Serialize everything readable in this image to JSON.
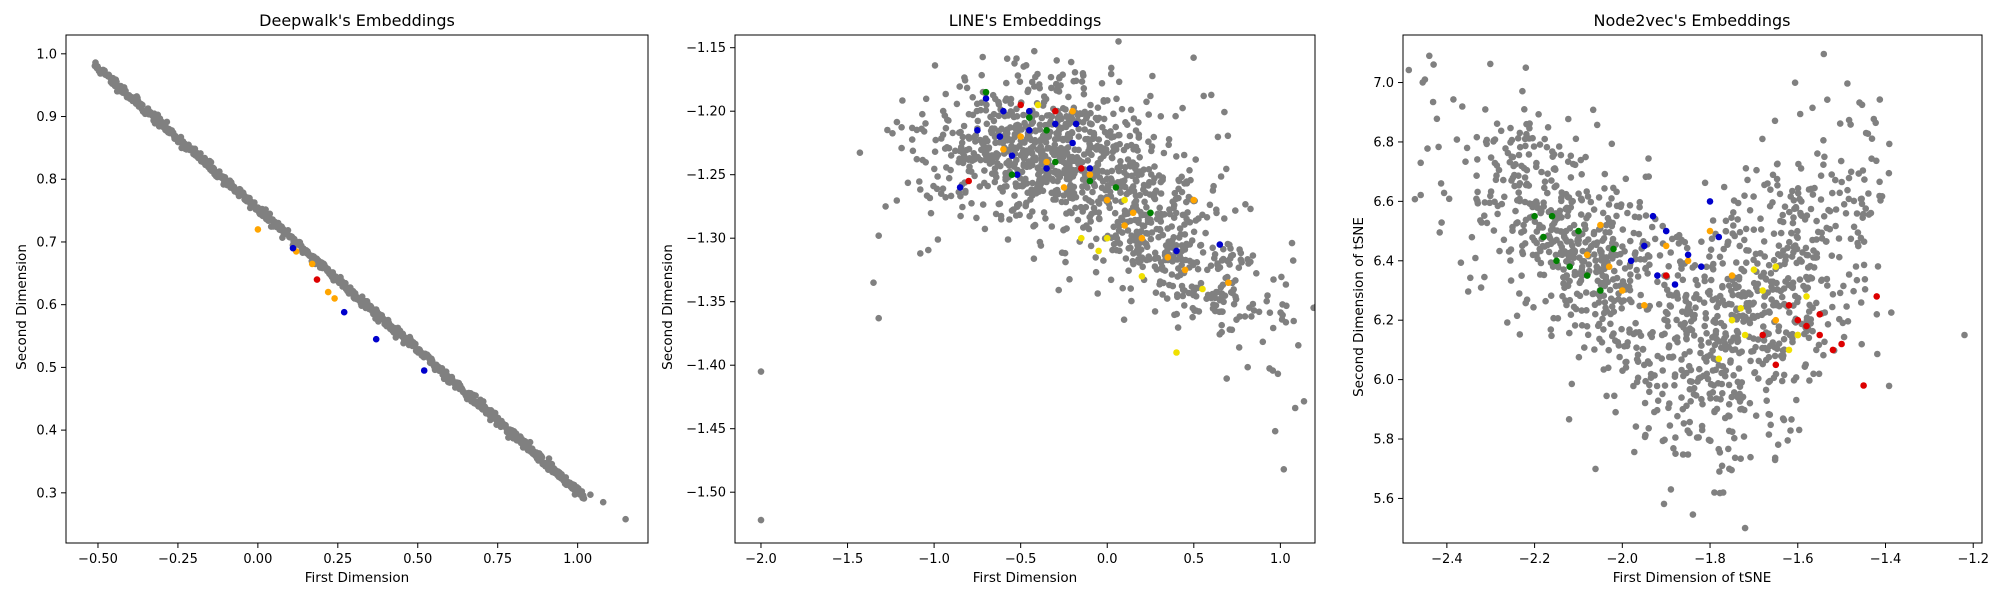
{
  "figure": {
    "background": "#ffffff"
  },
  "colors": {
    "gray": "#808080",
    "blue": "#0000cc",
    "orange": "#ffa500",
    "red": "#dd0000",
    "green": "#008000",
    "yellow": "#f0e000",
    "axis": "#000000"
  },
  "chart_data": [
    {
      "type": "scatter",
      "title": "Deepwalk's Embeddings",
      "xlabel": "First Dimension",
      "ylabel": "Second Dimension",
      "xlim": [
        -0.6,
        1.22
      ],
      "ylim": [
        0.22,
        1.03
      ],
      "xticks": [
        -0.5,
        -0.25,
        0.0,
        0.25,
        0.5,
        0.75,
        1.0
      ],
      "xtick_labels": [
        "−0.50",
        "−0.25",
        "0.00",
        "0.25",
        "0.50",
        "0.75",
        "1.00"
      ],
      "yticks": [
        0.3,
        0.4,
        0.5,
        0.6,
        0.7,
        0.8,
        0.9,
        1.0
      ],
      "ytick_labels": [
        "0.3",
        "0.4",
        "0.5",
        "0.6",
        "0.7",
        "0.8",
        "0.9",
        "1.0"
      ],
      "seed": 11,
      "generator": {
        "model": "line",
        "slope": -0.4497,
        "intercept": 0.7525,
        "x_start": -0.51,
        "x_end": 1.02,
        "noise": 0.004,
        "outliers": [
          [
            1.15,
            0.258
          ],
          [
            1.08,
            0.285
          ],
          [
            1.04,
            0.297
          ]
        ]
      },
      "highlights": {
        "orange": [
          [
            0.0,
            0.72
          ],
          [
            0.12,
            0.685
          ],
          [
            0.17,
            0.665
          ],
          [
            0.22,
            0.62
          ],
          [
            0.24,
            0.61
          ]
        ],
        "blue": [
          [
            0.11,
            0.69
          ],
          [
            0.27,
            0.588
          ],
          [
            0.37,
            0.545
          ],
          [
            0.52,
            0.495
          ]
        ],
        "red": [
          [
            0.185,
            0.64
          ]
        ]
      }
    },
    {
      "type": "scatter",
      "title": "LINE's Embeddings",
      "xlabel": "First Dimension",
      "ylabel": "Second Dimension",
      "xlim": [
        -2.15,
        1.2
      ],
      "ylim": [
        -1.54,
        -1.14
      ],
      "xticks": [
        -2.0,
        -1.5,
        -1.0,
        -0.5,
        0.0,
        0.5,
        1.0
      ],
      "xtick_labels": [
        "−2.0",
        "−1.5",
        "−1.0",
        "−0.5",
        "0.0",
        "0.5",
        "1.0"
      ],
      "yticks": [
        -1.5,
        -1.45,
        -1.4,
        -1.35,
        -1.3,
        -1.25,
        -1.2,
        -1.15
      ],
      "ytick_labels": [
        "−1.50",
        "−1.45",
        "−1.40",
        "−1.35",
        "−1.30",
        "−1.25",
        "−1.20",
        "−1.15"
      ],
      "seed": 23,
      "generator": {
        "model": "cloud",
        "count": 1200,
        "clusters": [
          {
            "weight": 0.55,
            "cx": -0.4,
            "cy": -1.23,
            "sx": 0.35,
            "sy": 0.028,
            "slope": 0.0
          },
          {
            "weight": 0.45,
            "cx": 0.3,
            "cy": -1.3,
            "sx": 0.35,
            "sy": 0.03,
            "slope": -0.08
          }
        ],
        "outliers": [
          [
            -2.0,
            -1.405
          ],
          [
            -2.0,
            -1.522
          ],
          [
            -1.35,
            -1.335
          ],
          [
            -1.32,
            -1.363
          ],
          [
            -1.32,
            -1.298
          ],
          [
            -1.28,
            -1.275
          ],
          [
            1.02,
            -1.482
          ],
          [
            0.97,
            -1.452
          ],
          [
            -1.08,
            -1.312
          ]
        ]
      },
      "highlights": {
        "blue": [
          [
            -0.75,
            -1.215
          ],
          [
            -0.7,
            -1.19
          ],
          [
            -0.6,
            -1.2
          ],
          [
            -0.55,
            -1.235
          ],
          [
            -0.45,
            -1.215
          ],
          [
            -0.35,
            -1.245
          ],
          [
            -0.3,
            -1.21
          ],
          [
            -0.2,
            -1.225
          ],
          [
            -0.1,
            -1.245
          ],
          [
            -0.85,
            -1.26
          ],
          [
            -0.52,
            -1.25
          ],
          [
            -0.18,
            -1.21
          ],
          [
            -0.62,
            -1.22
          ],
          [
            0.4,
            -1.31
          ],
          [
            0.65,
            -1.305
          ],
          [
            -0.45,
            -1.2
          ]
        ],
        "orange": [
          [
            -0.6,
            -1.23
          ],
          [
            -0.35,
            -1.24
          ],
          [
            -0.2,
            -1.2
          ],
          [
            -0.1,
            -1.25
          ],
          [
            0.0,
            -1.27
          ],
          [
            0.1,
            -1.29
          ],
          [
            0.2,
            -1.3
          ],
          [
            0.35,
            -1.315
          ],
          [
            0.5,
            -1.27
          ],
          [
            0.7,
            -1.335
          ],
          [
            -0.5,
            -1.22
          ],
          [
            0.15,
            -1.28
          ],
          [
            0.45,
            -1.325
          ],
          [
            -0.25,
            -1.26
          ]
        ],
        "green": [
          [
            -0.7,
            -1.185
          ],
          [
            -0.45,
            -1.205
          ],
          [
            -0.3,
            -1.24
          ],
          [
            -0.1,
            -1.255
          ],
          [
            0.05,
            -1.26
          ],
          [
            -0.55,
            -1.25
          ],
          [
            0.25,
            -1.28
          ],
          [
            -0.35,
            -1.215
          ]
        ],
        "red": [
          [
            -0.5,
            -1.195
          ],
          [
            -0.3,
            -1.2
          ],
          [
            -0.15,
            -1.245
          ],
          [
            -0.8,
            -1.255
          ]
        ],
        "yellow": [
          [
            -0.4,
            -1.195
          ],
          [
            -0.15,
            -1.3
          ],
          [
            0.0,
            -1.3
          ],
          [
            0.2,
            -1.33
          ],
          [
            0.4,
            -1.39
          ],
          [
            -0.05,
            -1.31
          ],
          [
            0.1,
            -1.27
          ],
          [
            0.55,
            -1.34
          ]
        ]
      }
    },
    {
      "type": "scatter",
      "title": "Node2vec's Embeddings",
      "xlabel": "First Dimension of tSNE",
      "ylabel": "Second Dimension of tSNE",
      "xlim": [
        -2.5,
        -1.18
      ],
      "ylim": [
        5.45,
        7.16
      ],
      "xticks": [
        -2.4,
        -2.2,
        -2.0,
        -1.8,
        -1.6,
        -1.4,
        -1.2
      ],
      "xtick_labels": [
        "−2.4",
        "−2.2",
        "−2.0",
        "−1.8",
        "−1.6",
        "−1.4",
        "−1.2"
      ],
      "yticks": [
        5.6,
        5.8,
        6.0,
        6.2,
        6.4,
        6.6,
        6.8,
        7.0
      ],
      "ytick_labels": [
        "5.6",
        "5.8",
        "6.0",
        "6.2",
        "6.4",
        "6.6",
        "6.8",
        "7.0"
      ],
      "seed": 37,
      "generator": {
        "model": "cloud",
        "count": 1300,
        "clusters": [
          {
            "weight": 0.5,
            "cx": -2.1,
            "cy": 6.45,
            "sx": 0.14,
            "sy": 0.17,
            "slope": -1.0
          },
          {
            "weight": 0.5,
            "cx": -1.68,
            "cy": 6.25,
            "sx": 0.13,
            "sy": 0.22,
            "slope": 1.1
          }
        ],
        "outliers": [
          [
            -2.44,
            7.09
          ],
          [
            -2.45,
            7.01
          ],
          [
            -2.22,
            7.05
          ],
          [
            -1.22,
            6.15
          ],
          [
            -1.72,
            5.5
          ],
          [
            -1.79,
            5.62
          ],
          [
            -1.77,
            5.62
          ]
        ]
      },
      "highlights": {
        "green": [
          [
            -2.2,
            6.55
          ],
          [
            -2.18,
            6.48
          ],
          [
            -2.15,
            6.4
          ],
          [
            -2.12,
            6.38
          ],
          [
            -2.1,
            6.5
          ],
          [
            -2.05,
            6.3
          ],
          [
            -2.02,
            6.44
          ],
          [
            -2.16,
            6.55
          ],
          [
            -2.08,
            6.35
          ]
        ],
        "orange": [
          [
            -2.08,
            6.42
          ],
          [
            -2.05,
            6.52
          ],
          [
            -2.0,
            6.3
          ],
          [
            -1.95,
            6.25
          ],
          [
            -1.9,
            6.45
          ],
          [
            -1.85,
            6.4
          ],
          [
            -1.8,
            6.5
          ],
          [
            -1.75,
            6.35
          ],
          [
            -1.65,
            6.2
          ],
          [
            -1.6,
            6.15
          ],
          [
            -2.03,
            6.38
          ]
        ],
        "blue": [
          [
            -1.98,
            6.4
          ],
          [
            -1.95,
            6.45
          ],
          [
            -1.92,
            6.35
          ],
          [
            -1.9,
            6.5
          ],
          [
            -1.85,
            6.42
          ],
          [
            -1.82,
            6.38
          ],
          [
            -1.8,
            6.6
          ],
          [
            -1.78,
            6.48
          ],
          [
            -1.88,
            6.32
          ],
          [
            -1.93,
            6.55
          ]
        ],
        "red": [
          [
            -1.9,
            6.35
          ],
          [
            -1.62,
            6.25
          ],
          [
            -1.6,
            6.2
          ],
          [
            -1.58,
            6.18
          ],
          [
            -1.55,
            6.15
          ],
          [
            -1.52,
            6.1
          ],
          [
            -1.5,
            6.12
          ],
          [
            -1.45,
            5.98
          ],
          [
            -1.42,
            6.28
          ],
          [
            -1.65,
            6.05
          ],
          [
            -1.68,
            6.15
          ],
          [
            -1.55,
            6.22
          ]
        ],
        "yellow": [
          [
            -1.75,
            6.2
          ],
          [
            -1.72,
            6.15
          ],
          [
            -1.7,
            6.37
          ],
          [
            -1.68,
            6.3
          ],
          [
            -1.65,
            6.38
          ],
          [
            -1.62,
            6.1
          ],
          [
            -1.6,
            6.15
          ],
          [
            -1.58,
            6.28
          ],
          [
            -1.78,
            6.07
          ],
          [
            -1.73,
            6.24
          ]
        ]
      }
    }
  ]
}
